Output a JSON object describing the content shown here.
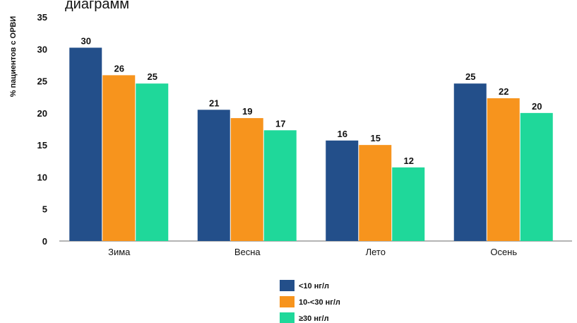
{
  "top_text": "диаграмм",
  "colors": [
    "#234f8a",
    "#f7941d",
    "#1fd89a"
  ],
  "chart_data": {
    "type": "bar",
    "title": "",
    "xlabel": "",
    "ylabel": "% пациентов с ОРВИ",
    "ylim": [
      0,
      35
    ],
    "yticks": [
      0,
      5,
      10,
      15,
      20,
      25,
      30,
      35
    ],
    "categories": [
      "Зима",
      "Весна",
      "Лето",
      "Осень"
    ],
    "series": [
      {
        "name": "<10 нг/л",
        "values": [
          30,
          21,
          16,
          25
        ],
        "display_values": [
          30.2,
          20.5,
          15.7,
          24.6
        ]
      },
      {
        "name": "10-<30 нг/л",
        "values": [
          26,
          19,
          15,
          22
        ],
        "display_values": [
          25.9,
          19.2,
          15.0,
          22.3
        ]
      },
      {
        "name": "≥30 нг/л",
        "values": [
          25,
          17,
          12,
          20
        ],
        "display_values": [
          24.6,
          17.3,
          11.5,
          20.0
        ]
      }
    ],
    "legend_position": "bottom-center",
    "grid": false
  }
}
